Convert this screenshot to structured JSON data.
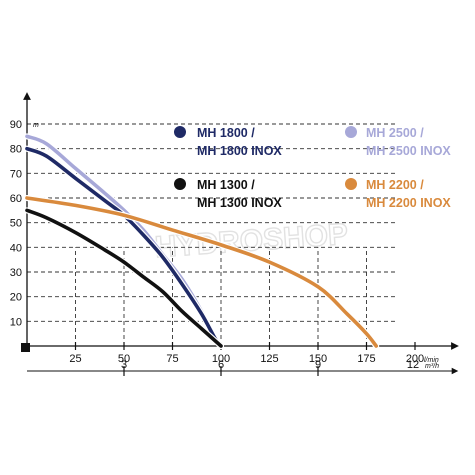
{
  "chart_data": {
    "type": "line",
    "xlabel_unit": "l/min",
    "ylabel_unit": "m",
    "x_ticks": [
      "25",
      "50",
      "75",
      "100",
      "125",
      "150",
      "175",
      "200"
    ],
    "y_ticks": [
      "10",
      "20",
      "30",
      "40",
      "50",
      "60",
      "70",
      "80",
      "90"
    ],
    "secondary_axis_unit": "m³/h",
    "secondary_ticks": [
      {
        "label": "3",
        "x": 50
      },
      {
        "label": "6",
        "x": 100
      },
      {
        "label": "9",
        "x": 150
      },
      {
        "label": "12",
        "x": 200
      }
    ],
    "xlim": [
      0,
      200
    ],
    "ylim": [
      0,
      90
    ],
    "grid": "dashed",
    "series": [
      {
        "name": "MH 2500 / MH 2500 INOX",
        "color": "#a7a8d8",
        "points": [
          [
            0,
            85
          ],
          [
            10,
            82
          ],
          [
            25,
            72
          ],
          [
            40,
            62
          ],
          [
            50,
            55
          ],
          [
            60,
            47
          ],
          [
            70,
            37
          ],
          [
            80,
            27
          ],
          [
            90,
            14
          ],
          [
            97,
            3
          ],
          [
            100,
            0
          ]
        ]
      },
      {
        "name": "MH 1800 / MH 1800 INOX",
        "color": "#1f2a66",
        "points": [
          [
            0,
            80
          ],
          [
            10,
            77
          ],
          [
            25,
            68
          ],
          [
            40,
            59
          ],
          [
            50,
            53
          ],
          [
            60,
            45
          ],
          [
            70,
            36
          ],
          [
            80,
            25
          ],
          [
            90,
            13
          ],
          [
            97,
            3
          ],
          [
            100,
            0
          ]
        ]
      },
      {
        "name": "MH 1300 / MH 1300 INOX",
        "color": "#111111",
        "points": [
          [
            0,
            55
          ],
          [
            10,
            52
          ],
          [
            25,
            46
          ],
          [
            40,
            39
          ],
          [
            50,
            34
          ],
          [
            60,
            28
          ],
          [
            70,
            22
          ],
          [
            80,
            14
          ],
          [
            90,
            7
          ],
          [
            100,
            0
          ]
        ]
      },
      {
        "name": "MH 2200 / MH 2200 INOX",
        "color": "#d98a3d",
        "points": [
          [
            0,
            60
          ],
          [
            25,
            57
          ],
          [
            50,
            53
          ],
          [
            75,
            47
          ],
          [
            100,
            41
          ],
          [
            125,
            34
          ],
          [
            150,
            24
          ],
          [
            165,
            13
          ],
          [
            175,
            5
          ],
          [
            180,
            0
          ]
        ]
      }
    ]
  },
  "legend": [
    {
      "line1": "MH 1800 /",
      "line2": "MH 1800 INOX",
      "color": "#1f2a66"
    },
    {
      "line1": "MH 2500 /",
      "line2": "MH 2500 INOX",
      "color": "#a7a8d8"
    },
    {
      "line1": "MH 1300 /",
      "line2": "MH 1300 INOX",
      "color": "#111111"
    },
    {
      "line1": "MH 2200 /",
      "line2": "MH 2200 INOX",
      "color": "#d98a3d"
    }
  ],
  "watermark": "HYDROSHOP"
}
